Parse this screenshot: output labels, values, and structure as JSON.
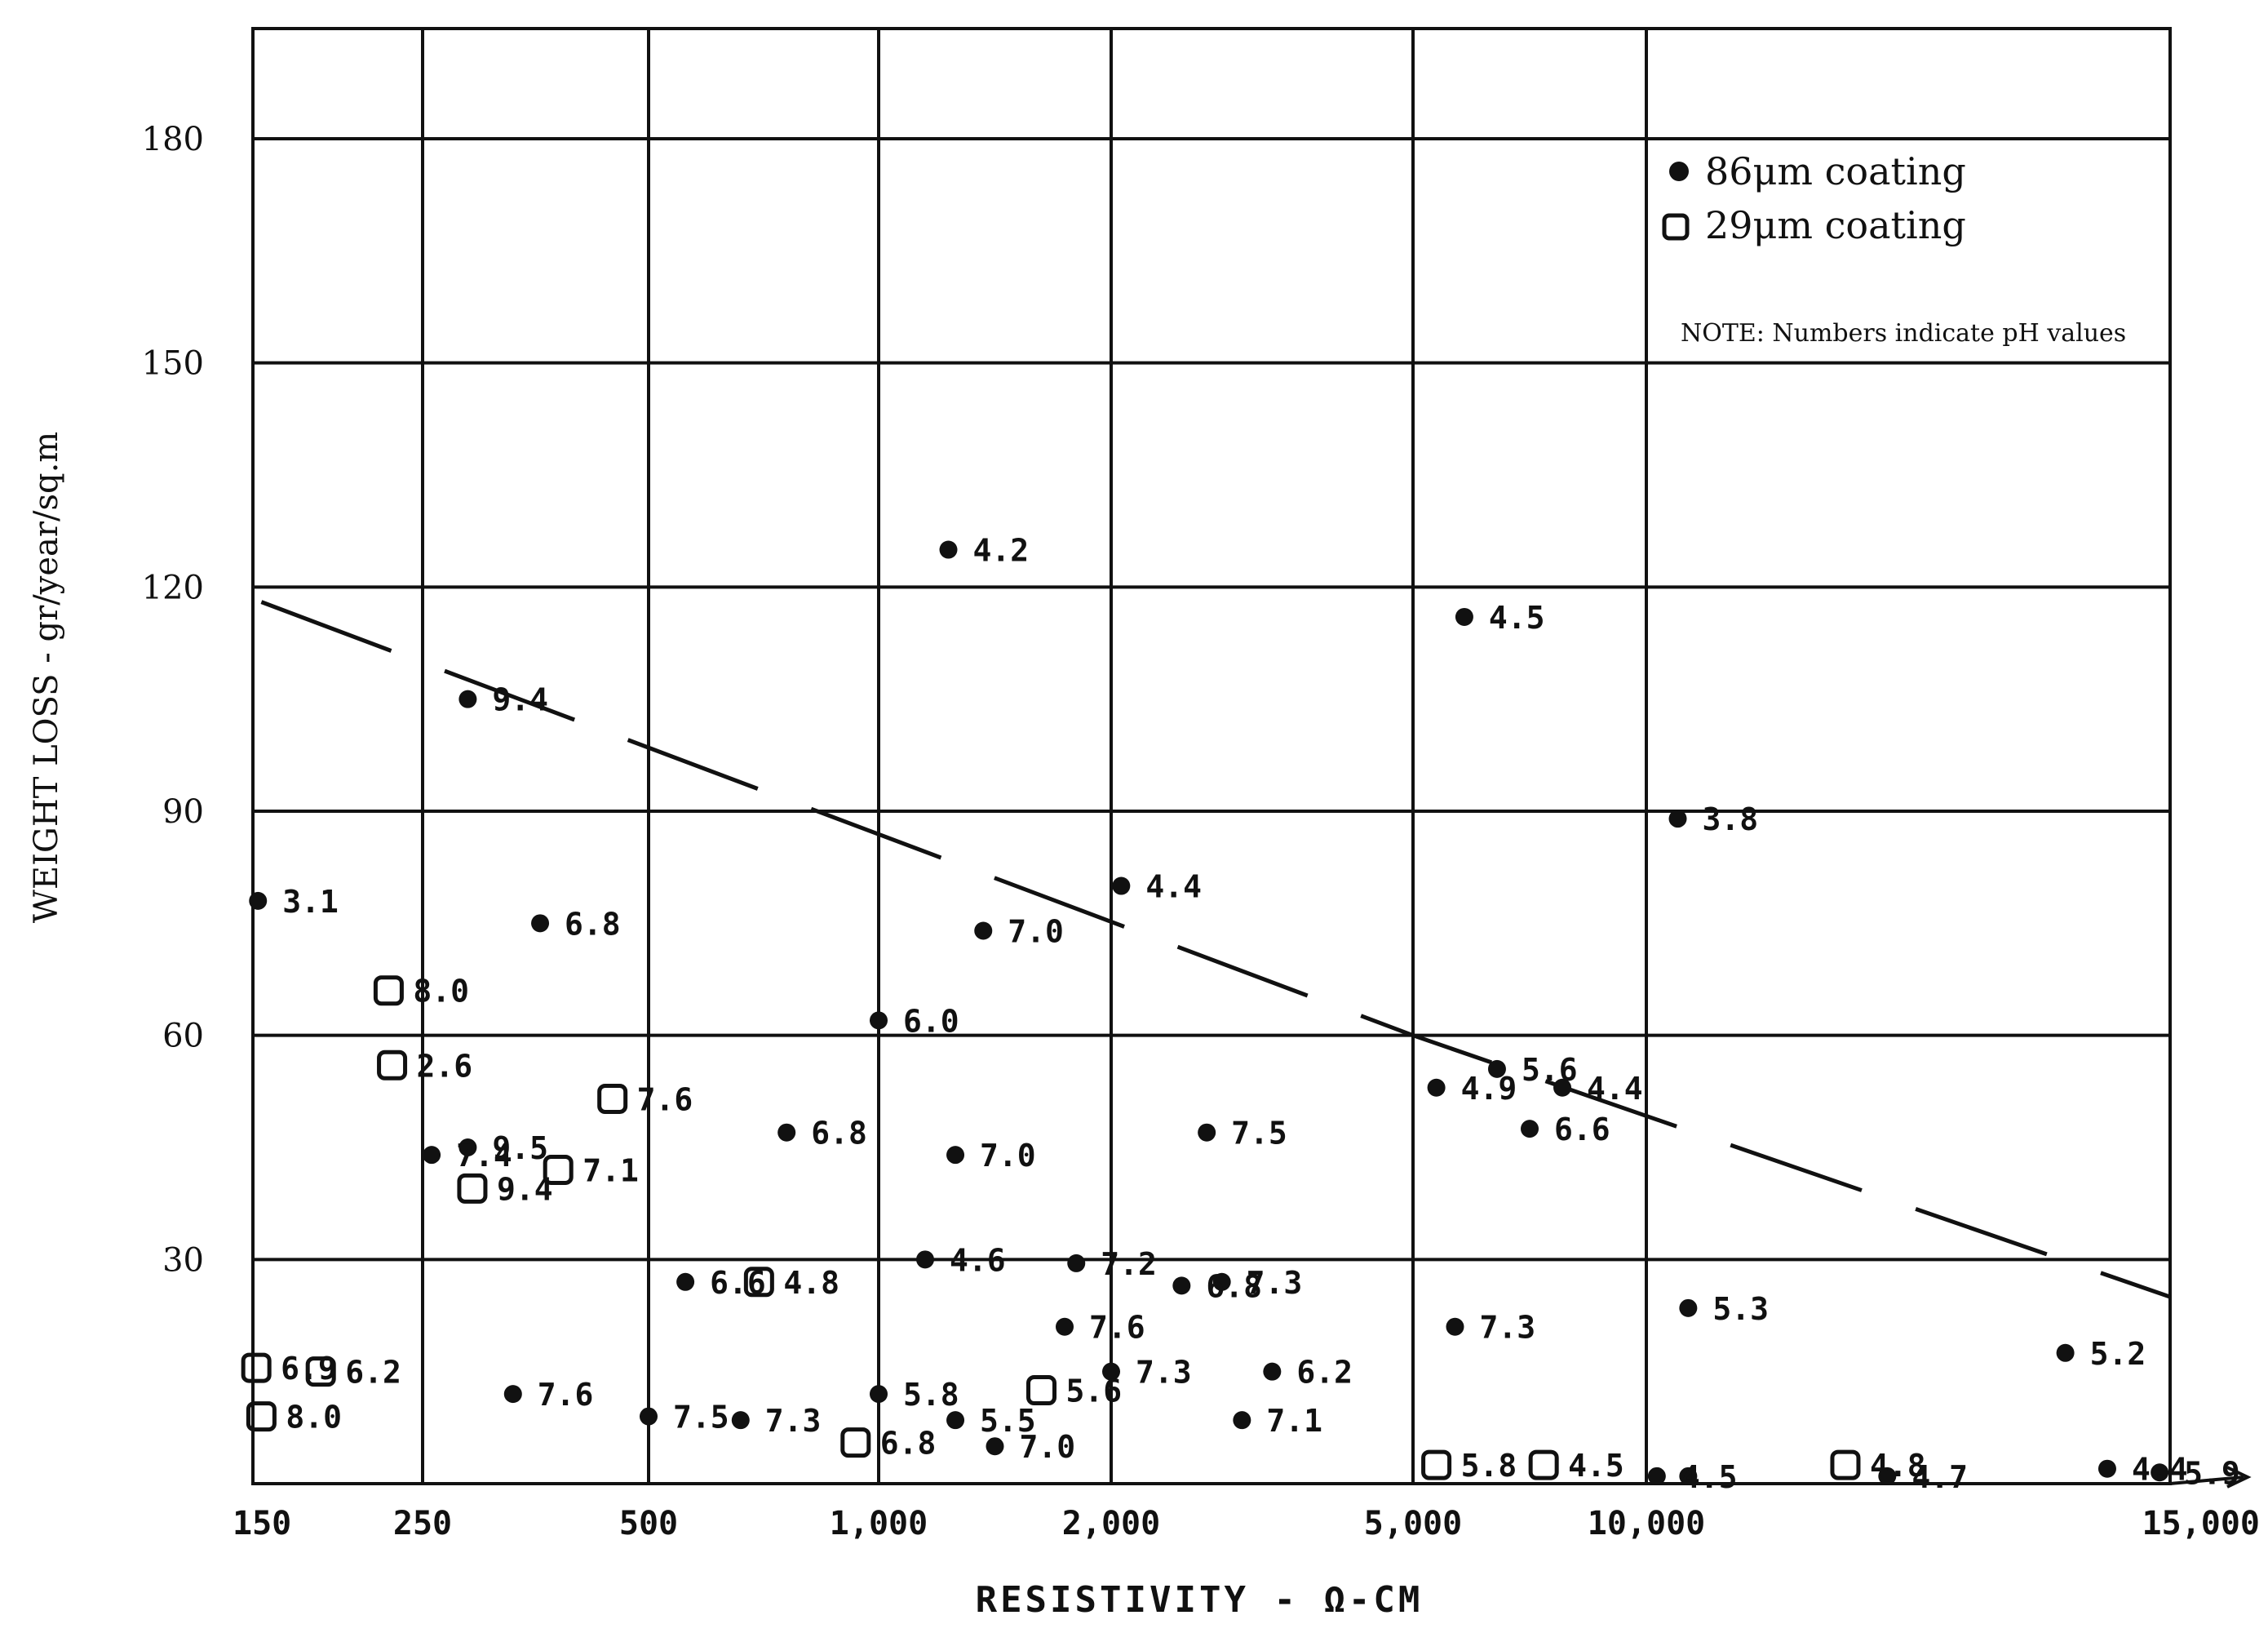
{
  "chart_data": {
    "type": "scatter",
    "title": "",
    "xlabel": "RESISTIVITY - Ω-CM",
    "ylabel": "WEIGHT LOSS - gr/year/sq.m",
    "x_scale": "categorical-log (nonuniform tick spacing)",
    "x_ticks": [
      {
        "label": "150",
        "value": 150
      },
      {
        "label": "250",
        "value": 250
      },
      {
        "label": "500",
        "value": 500
      },
      {
        "label": "1,000",
        "value": 1000
      },
      {
        "label": "2,000",
        "value": 2000
      },
      {
        "label": "5,000",
        "value": 5000
      },
      {
        "label": "10,000",
        "value": 10000
      },
      {
        "label": "15,000",
        "value": 15000
      }
    ],
    "y_ticks": [
      {
        "label": "30",
        "value": 30
      },
      {
        "label": "60",
        "value": 60
      },
      {
        "label": "90",
        "value": 90
      },
      {
        "label": "120",
        "value": 120
      },
      {
        "label": "150",
        "value": 150
      },
      {
        "label": "180",
        "value": 180
      }
    ],
    "ylim": [
      0,
      194
    ],
    "xlim": [
      150,
      15000
    ],
    "grid": true,
    "legend_position": "top-right",
    "note": "NOTE:  Numbers indicate pH values",
    "series": [
      {
        "name": "86μm coating",
        "marker": "filled-circle",
        "points": [
          {
            "x": 153,
            "y": 78,
            "label": "3.1"
          },
          {
            "x": 260,
            "y": 44,
            "label": "7.4"
          },
          {
            "x": 300,
            "y": 105,
            "label": "9.4"
          },
          {
            "x": 300,
            "y": 45,
            "label": "9.5"
          },
          {
            "x": 380,
            "y": 75,
            "label": "6.8"
          },
          {
            "x": 350,
            "y": 12,
            "label": "7.6"
          },
          {
            "x": 500,
            "y": 9,
            "label": "7.5"
          },
          {
            "x": 580,
            "y": 27,
            "label": "6.6"
          },
          {
            "x": 700,
            "y": 8.5,
            "label": "7.3"
          },
          {
            "x": 800,
            "y": 47,
            "label": "6.8"
          },
          {
            "x": 1000,
            "y": 62,
            "label": "6.0"
          },
          {
            "x": 1000,
            "y": 12,
            "label": "5.8"
          },
          {
            "x": 1200,
            "y": 30,
            "label": "4.6"
          },
          {
            "x": 1300,
            "y": 125,
            "label": "4.2"
          },
          {
            "x": 1330,
            "y": 44,
            "label": "7.0"
          },
          {
            "x": 1330,
            "y": 8.5,
            "label": "5.5"
          },
          {
            "x": 1450,
            "y": 74,
            "label": "7.0"
          },
          {
            "x": 1500,
            "y": 5,
            "label": "7.0"
          },
          {
            "x": 1850,
            "y": 29.5,
            "label": "7.2"
          },
          {
            "x": 1800,
            "y": 21,
            "label": "7.6"
          },
          {
            "x": 2000,
            "y": 15,
            "label": "7.3"
          },
          {
            "x": 2100,
            "y": 80,
            "label": "4.4"
          },
          {
            "x": 2700,
            "y": 26.5,
            "label": "6.8"
          },
          {
            "x": 2950,
            "y": 47,
            "label": "7.5"
          },
          {
            "x": 3100,
            "y": 27,
            "label": "7.3"
          },
          {
            "x": 3300,
            "y": 8.5,
            "label": "7.1"
          },
          {
            "x": 3600,
            "y": 15,
            "label": "6.2"
          },
          {
            "x": 5500,
            "y": 53,
            "label": "4.9"
          },
          {
            "x": 5900,
            "y": 21,
            "label": "7.3"
          },
          {
            "x": 6100,
            "y": 116,
            "label": "4.5"
          },
          {
            "x": 6800,
            "y": 55.5,
            "label": "5.6"
          },
          {
            "x": 7500,
            "y": 47.5,
            "label": "6.6"
          },
          {
            "x": 8200,
            "y": 53,
            "label": "4.4"
          },
          {
            "x": 10300,
            "y": 89,
            "label": "3.8"
          },
          {
            "x": 10400,
            "y": 23.5,
            "label": "5.3"
          },
          {
            "x": 10100,
            "y": 1,
            "label": "4.5"
          },
          {
            "x": 10400,
            "y": 1,
            "label": ""
          },
          {
            "x": 12300,
            "y": 1,
            "label": "4.7"
          },
          {
            "x": 14000,
            "y": 17.5,
            "label": "5.2"
          },
          {
            "x": 14400,
            "y": 2,
            "label": "4.4"
          },
          {
            "x": 14900,
            "y": 1.5,
            "label": "5.9"
          }
        ]
      },
      {
        "name": "29μm coating",
        "marker": "open-square",
        "points": [
          {
            "x": 152,
            "y": 15.5,
            "label": "6.9"
          },
          {
            "x": 155,
            "y": 9,
            "label": "8.0"
          },
          {
            "x": 190,
            "y": 15,
            "label": "6.2"
          },
          {
            "x": 230,
            "y": 66,
            "label": "8.0"
          },
          {
            "x": 232,
            "y": 56,
            "label": "2.6"
          },
          {
            "x": 305,
            "y": 39.5,
            "label": "9.4"
          },
          {
            "x": 400,
            "y": 42,
            "label": "7.1"
          },
          {
            "x": 460,
            "y": 51.5,
            "label": "7.6"
          },
          {
            "x": 740,
            "y": 27,
            "label": "4.8"
          },
          {
            "x": 950,
            "y": 5.5,
            "label": "6.8"
          },
          {
            "x": 1700,
            "y": 12.5,
            "label": "5.6"
          },
          {
            "x": 5500,
            "y": 2.5,
            "label": "5.8"
          },
          {
            "x": 7800,
            "y": 2.5,
            "label": "4.5"
          },
          {
            "x": 11900,
            "y": 2.5,
            "label": "4.8"
          }
        ]
      }
    ],
    "trend_line": {
      "style": "dashed",
      "points": [
        {
          "x": 155,
          "y": 118
        },
        {
          "x": 5000,
          "y": 60
        },
        {
          "x": 15000,
          "y": 25
        }
      ]
    }
  }
}
